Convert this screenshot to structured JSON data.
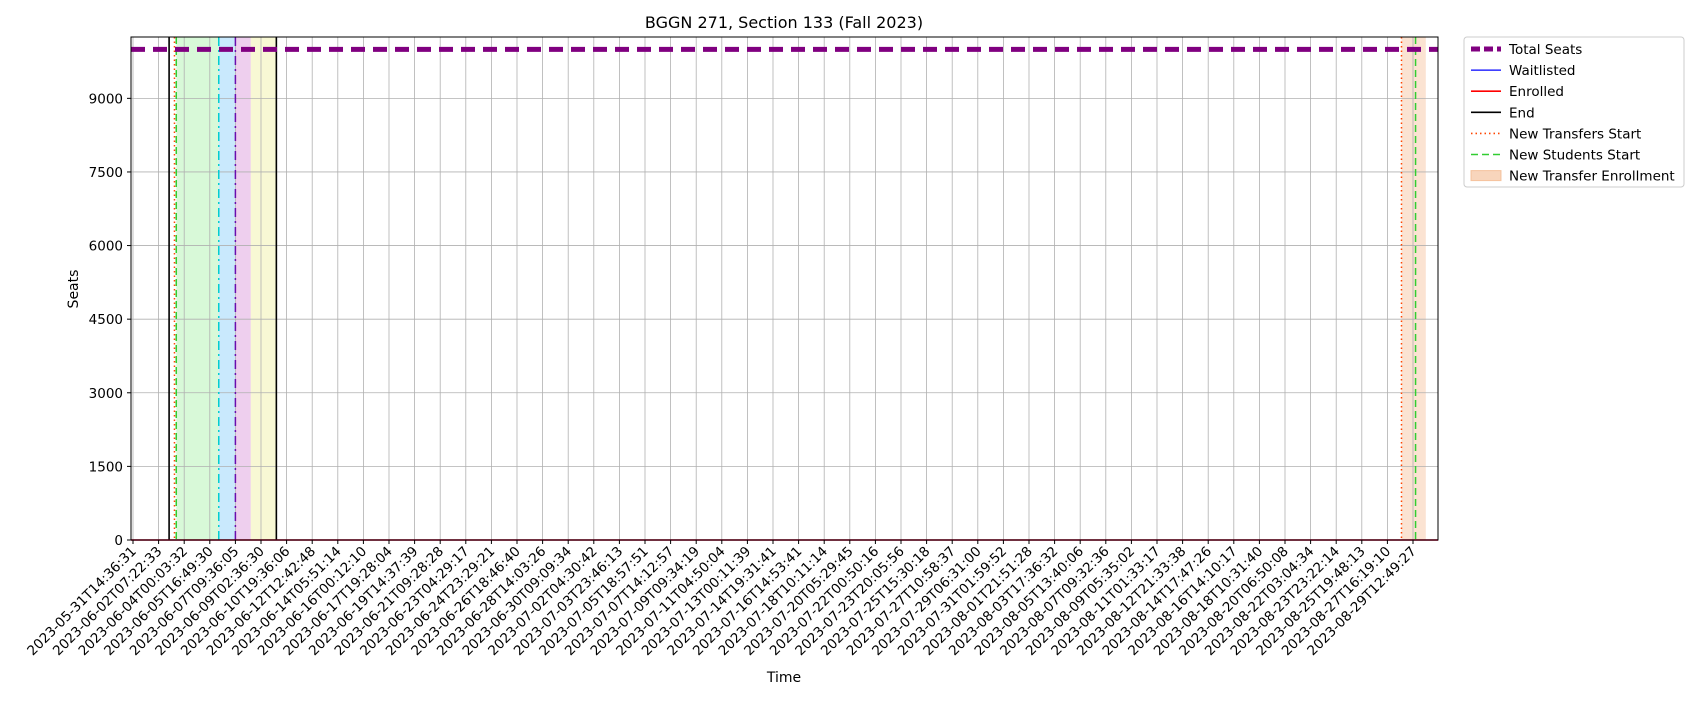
{
  "chart_data": {
    "type": "line",
    "title": "BGGN 271, Section 133 (Fall 2023)",
    "xlabel": "Time",
    "ylabel": "Seats",
    "ylim": [
      0,
      10250
    ],
    "yticks": [
      0,
      1500,
      3000,
      4500,
      6000,
      7500,
      9000
    ],
    "grid": true,
    "legend_position": "outside-top-right",
    "x_tick_labels": [
      "2023-05-31T14:36:31",
      "2023-06-02T07:22:33",
      "2023-06-04T00:03:32",
      "2023-06-05T16:49:30",
      "2023-06-07T09:36:05",
      "2023-06-09T02:36:30",
      "2023-06-10T19:36:06",
      "2023-06-12T12:42:48",
      "2023-06-14T05:51:14",
      "2023-06-16T00:12:10",
      "2023-06-17T19:28:04",
      "2023-06-19T14:37:39",
      "2023-06-21T09:28:28",
      "2023-06-23T04:29:17",
      "2023-06-24T23:29:21",
      "2023-06-26T18:46:40",
      "2023-06-28T14:03:26",
      "2023-06-30T09:09:34",
      "2023-07-02T04:30:42",
      "2023-07-03T23:46:13",
      "2023-07-05T18:57:51",
      "2023-07-07T14:12:57",
      "2023-07-09T09:34:19",
      "2023-07-11T04:50:04",
      "2023-07-13T00:11:39",
      "2023-07-14T19:31:41",
      "2023-07-16T14:53:41",
      "2023-07-18T10:11:14",
      "2023-07-20T05:29:45",
      "2023-07-22T00:50:16",
      "2023-07-23T20:05:56",
      "2023-07-25T15:30:18",
      "2023-07-27T10:58:37",
      "2023-07-29T06:31:00",
      "2023-07-31T01:59:52",
      "2023-08-01T21:51:28",
      "2023-08-03T17:36:32",
      "2023-08-05T13:40:06",
      "2023-08-07T09:32:36",
      "2023-08-09T05:35:02",
      "2023-08-11T01:33:17",
      "2023-08-12T21:33:38",
      "2023-08-14T17:47:26",
      "2023-08-16T14:10:17",
      "2023-08-18T10:31:40",
      "2023-08-20T06:50:08",
      "2023-08-22T03:04:34",
      "2023-08-23T23:22:14",
      "2023-08-25T19:48:13",
      "2023-08-27T16:19:10",
      "2023-08-29T12:49:27"
    ],
    "series": [
      {
        "name": "Total Seats",
        "color": "#800080",
        "style": "dashed-thick",
        "values_constant": 9999
      },
      {
        "name": "Waitlisted",
        "color": "#0000ff",
        "style": "solid-thin",
        "values_constant": 0
      },
      {
        "name": "Enrolled",
        "color": "#ff0000",
        "style": "solid",
        "values_constant": 0
      }
    ],
    "vertical_lines": [
      {
        "name": "End",
        "color": "#000000",
        "style": "solid",
        "x_index": 1.41
      },
      {
        "name": "End",
        "color": "#000000",
        "style": "solid",
        "x_index": 5.6
      },
      {
        "name": "New Transfers Start",
        "color": "#ff4500",
        "style": "dotted",
        "x_index": 1.62
      },
      {
        "name": "New Transfers Start",
        "color": "#ff4500",
        "style": "dotted",
        "x_index": 49.55
      },
      {
        "name": "New Students Start",
        "color": "#32cd32",
        "style": "dashed",
        "x_index": 1.69
      },
      {
        "name": "New Students Start",
        "color": "#32cd32",
        "style": "dashed",
        "x_index": 50.1
      },
      {
        "name": "",
        "color": "#00ced1",
        "style": "dashdot",
        "x_index": 3.35
      },
      {
        "name": "",
        "color": "#6a0dad",
        "style": "dashdot",
        "x_index": 4.0
      }
    ],
    "shaded_regions": [
      {
        "name": "",
        "color": "#90ee90",
        "opacity": 0.35,
        "x_start_index": 1.69,
        "x_end_index": 3.35
      },
      {
        "name": "",
        "color": "#87cefa",
        "opacity": 0.45,
        "x_start_index": 3.35,
        "x_end_index": 4.0
      },
      {
        "name": "",
        "color": "#dda0dd",
        "opacity": 0.5,
        "x_start_index": 4.0,
        "x_end_index": 4.6
      },
      {
        "name": "",
        "color": "#f0f0a0",
        "opacity": 0.45,
        "x_start_index": 4.6,
        "x_end_index": 5.6
      },
      {
        "name": "New Transfer Enrollment",
        "color": "#f4b98f",
        "opacity": 0.4,
        "x_start_index": 49.55,
        "x_end_index": 50.5
      }
    ],
    "legend": [
      {
        "label": "Total Seats",
        "color": "#800080",
        "style": "dashed-thick"
      },
      {
        "label": "Waitlisted",
        "color": "#0000ff",
        "style": "solid-thin"
      },
      {
        "label": "Enrolled",
        "color": "#ff0000",
        "style": "solid"
      },
      {
        "label": "End",
        "color": "#000000",
        "style": "solid"
      },
      {
        "label": "New Transfers Start",
        "color": "#ff4500",
        "style": "dotted"
      },
      {
        "label": "New Students Start",
        "color": "#32cd32",
        "style": "dashed"
      },
      {
        "label": "New Transfer Enrollment",
        "color": "#f4b98f",
        "style": "patch"
      }
    ]
  }
}
